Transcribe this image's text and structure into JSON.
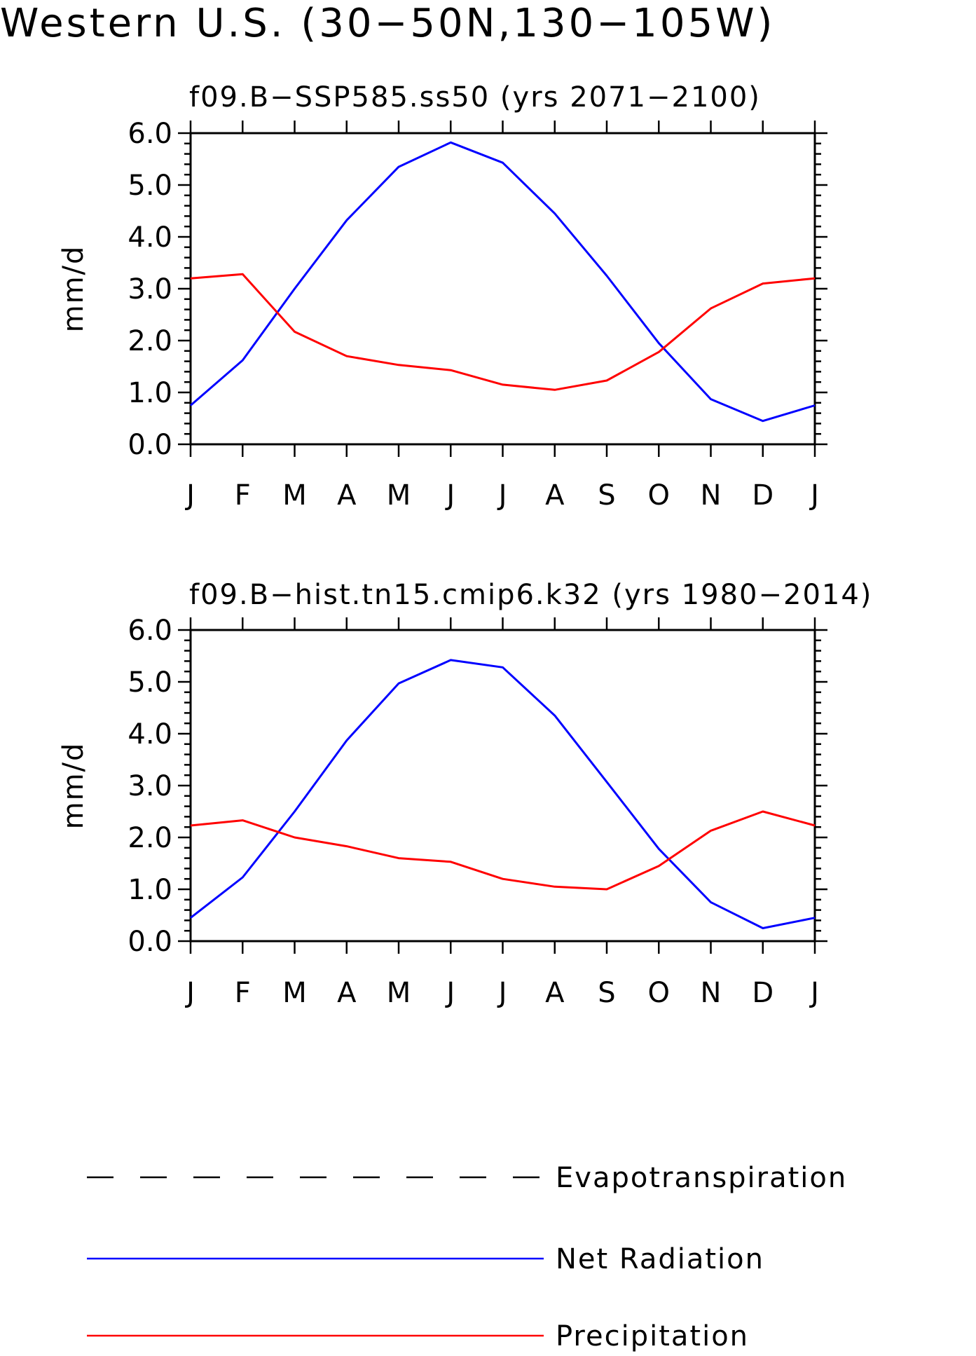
{
  "figure_title": "Western U.S. (30−50N,130−105W)",
  "colors": {
    "net_radiation": "#0000ff",
    "precipitation": "#ff0000",
    "evapotranspiration": "#000000"
  },
  "chart_data": [
    {
      "type": "line",
      "title": "f09.B−SSP585.ss50 (yrs 2071−2100)",
      "xlabel": "",
      "ylabel": "mm/d",
      "categories": [
        "J",
        "F",
        "M",
        "A",
        "M",
        "J",
        "J",
        "A",
        "S",
        "O",
        "N",
        "D",
        "J"
      ],
      "y_tick_labels": [
        "0.0",
        "1.0",
        "2.0",
        "3.0",
        "4.0",
        "5.0",
        "6.0"
      ],
      "ylim": [
        0,
        6
      ],
      "series": [
        {
          "name": "Net Radiation",
          "color": "#0000ff",
          "values": [
            0.75,
            1.62,
            3.0,
            4.32,
            5.35,
            5.82,
            5.43,
            4.45,
            3.25,
            1.95,
            0.87,
            0.45,
            0.75
          ]
        },
        {
          "name": "Precipitation",
          "color": "#ff0000",
          "values": [
            3.2,
            3.28,
            2.17,
            1.7,
            1.53,
            1.43,
            1.15,
            1.05,
            1.23,
            1.78,
            2.62,
            3.1,
            3.2
          ]
        }
      ]
    },
    {
      "type": "line",
      "title": "f09.B−hist.tn15.cmip6.k32 (yrs 1980−2014)",
      "xlabel": "",
      "ylabel": "mm/d",
      "categories": [
        "J",
        "F",
        "M",
        "A",
        "M",
        "J",
        "J",
        "A",
        "S",
        "O",
        "N",
        "D",
        "J"
      ],
      "y_tick_labels": [
        "0.0",
        "1.0",
        "2.0",
        "3.0",
        "4.0",
        "5.0",
        "6.0"
      ],
      "ylim": [
        0,
        6
      ],
      "series": [
        {
          "name": "Net Radiation",
          "color": "#0000ff",
          "values": [
            0.45,
            1.23,
            2.5,
            3.87,
            4.97,
            5.42,
            5.28,
            4.35,
            3.07,
            1.78,
            0.75,
            0.25,
            0.45
          ]
        },
        {
          "name": "Precipitation",
          "color": "#ff0000",
          "values": [
            2.23,
            2.33,
            2.0,
            1.83,
            1.6,
            1.53,
            1.2,
            1.05,
            1.0,
            1.45,
            2.13,
            2.5,
            2.23
          ]
        }
      ]
    }
  ],
  "legend": [
    {
      "label": "Evapotranspiration",
      "color": "#000000",
      "dash": true
    },
    {
      "label": "Net Radiation",
      "color": "#0000ff",
      "dash": false
    },
    {
      "label": "Precipitation",
      "color": "#ff0000",
      "dash": false
    }
  ]
}
